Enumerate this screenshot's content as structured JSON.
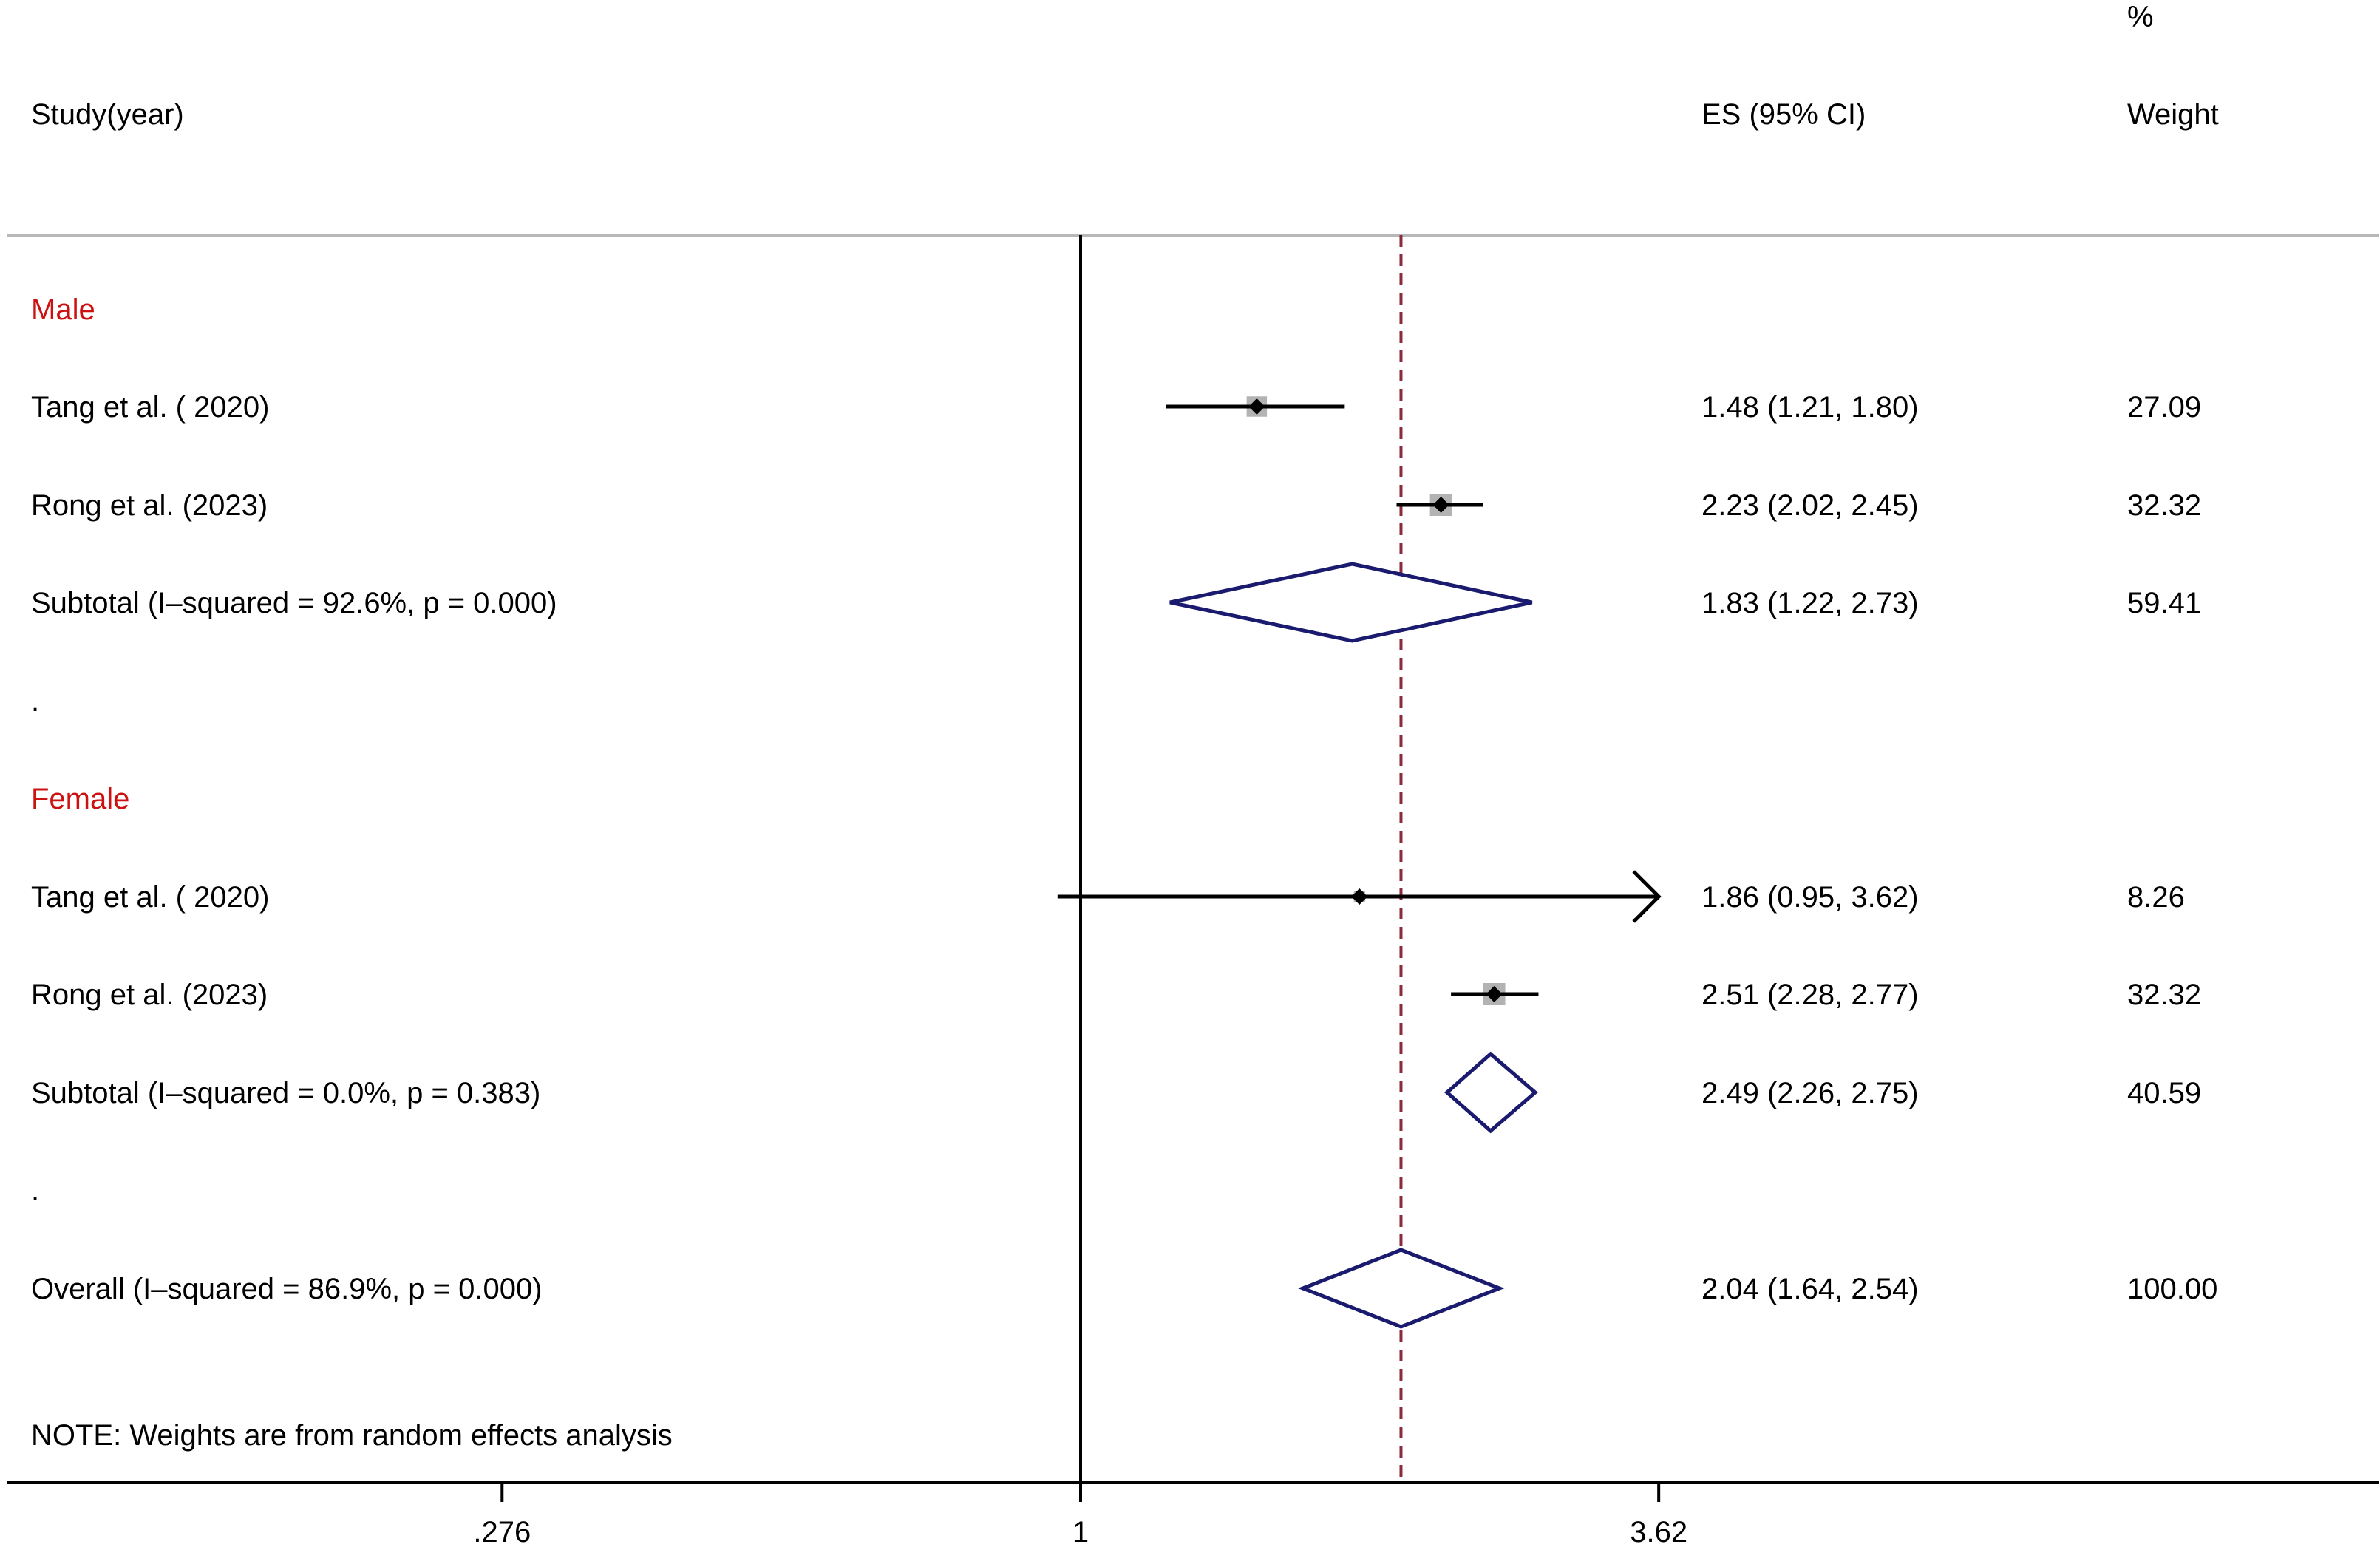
{
  "header": {
    "study": "Study(year)",
    "es": "ES (95% CI)",
    "weight_pct": "%",
    "weight": "Weight"
  },
  "note": "NOTE: Weights are from random effects analysis",
  "chart_data": {
    "type": "forest",
    "scale": "log",
    "x_ticks": [
      {
        "value": 0.276,
        "label": ".276"
      },
      {
        "value": 1,
        "label": "1"
      },
      {
        "value": 3.62,
        "label": "3.62"
      }
    ],
    "null_line": 1,
    "overall_line": 2.04,
    "colors": {
      "group_label": "#cc1111",
      "diamond": "#1a1a6e",
      "overall_line": "#8b2a3a",
      "box": "#b3b3b3"
    },
    "rows": [
      {
        "kind": "group",
        "label": "Male"
      },
      {
        "kind": "study",
        "label": "Tang et al.  ( 2020)",
        "es": 1.48,
        "lo": 1.21,
        "hi": 1.8,
        "es_text": "1.48 (1.21, 1.80)",
        "weight": 27.09,
        "weight_text": "27.09"
      },
      {
        "kind": "study",
        "label": "Rong et al.  (2023)",
        "es": 2.23,
        "lo": 2.02,
        "hi": 2.45,
        "es_text": "2.23 (2.02, 2.45)",
        "weight": 32.32,
        "weight_text": "32.32"
      },
      {
        "kind": "subtotal",
        "label": "Subtotal  (I–squared = 92.6%, p = 0.000)",
        "es": 1.83,
        "lo": 1.22,
        "hi": 2.73,
        "es_text": "1.83 (1.22, 2.73)",
        "weight": 59.41,
        "weight_text": "59.41"
      },
      {
        "kind": "spacer",
        "label": "."
      },
      {
        "kind": "group",
        "label": "Female"
      },
      {
        "kind": "study",
        "label": "Tang et al. ( 2020)",
        "es": 1.86,
        "lo": 0.95,
        "hi": 3.62,
        "es_text": "1.86 (0.95, 3.62)",
        "weight": 8.26,
        "weight_text": "8.26",
        "arrow_right": true
      },
      {
        "kind": "study",
        "label": "Rong et al.  (2023)",
        "es": 2.51,
        "lo": 2.28,
        "hi": 2.77,
        "es_text": "2.51 (2.28, 2.77)",
        "weight": 32.32,
        "weight_text": "32.32"
      },
      {
        "kind": "subtotal",
        "label": "Subtotal  (I–squared = 0.0%, p = 0.383)",
        "es": 2.49,
        "lo": 2.26,
        "hi": 2.75,
        "es_text": "2.49 (2.26, 2.75)",
        "weight": 40.59,
        "weight_text": "40.59"
      },
      {
        "kind": "spacer",
        "label": "."
      },
      {
        "kind": "overall",
        "label": "Overall  (I–squared = 86.9%, p = 0.000)",
        "es": 2.04,
        "lo": 1.64,
        "hi": 2.54,
        "es_text": "2.04 (1.64, 2.54)",
        "weight": 100.0,
        "weight_text": "100.00"
      }
    ]
  }
}
